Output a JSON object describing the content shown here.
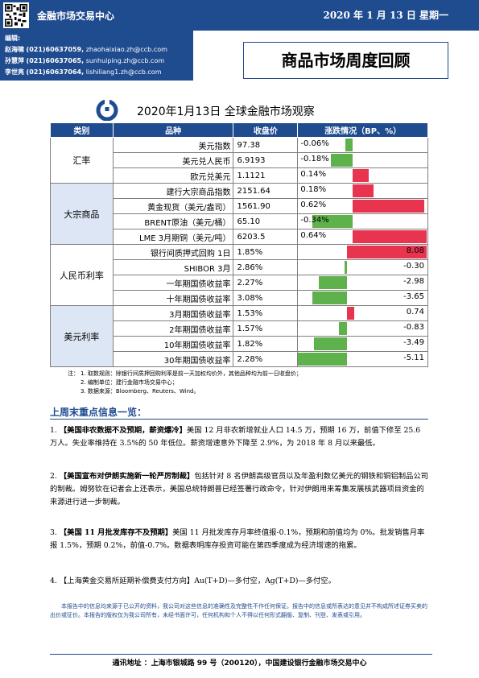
{
  "header": {
    "dept": "金融市场交易中心",
    "date": "2020 年 1 月 13 日  星期一",
    "editors_label": "编辑:",
    "editors": [
      {
        "name": "赵海啸",
        "phone": "(021)60637059,",
        "email": "zhaohaixiao.zh@ccb.com"
      },
      {
        "name": "孙慧萍",
        "phone": "(021)60637065,",
        "email": "sunhuiping.zh@ccb.com"
      },
      {
        "name": "李世亮",
        "phone": "(021)60637064,",
        "email": "lishiliang1.zh@ccb.com"
      }
    ],
    "report_title": "商品市场周度回顾"
  },
  "headline": "2020年1月13日  全球金融市场观察",
  "table": {
    "headers": [
      "类别",
      "品种",
      "收盘价",
      "涨跌情况（BP、%）"
    ],
    "accent_pos": "#e8344f",
    "accent_neg": "#5fb24b",
    "groups": [
      {
        "category": "汇率",
        "shade": false,
        "scale": "pct",
        "rows": [
          {
            "name": "美元指数",
            "close": "97.38",
            "change": "-0.06%",
            "value": -0.06
          },
          {
            "name": "美元兑人民币",
            "close": "6.9193",
            "change": "-0.18%",
            "value": -0.18
          },
          {
            "name": "欧元兑美元",
            "close": "1.1121",
            "change": "0.14%",
            "value": 0.14
          }
        ]
      },
      {
        "category": "大宗商品",
        "shade": true,
        "scale": "pct",
        "rows": [
          {
            "name": "建行大宗商品指数",
            "close": "2151.64",
            "change": "0.18%",
            "value": 0.18
          },
          {
            "name": "黄金现货（美元/盎司）",
            "close": "1561.90",
            "change": "0.62%",
            "value": 0.62
          },
          {
            "name": "BRENT原油（美元/桶）",
            "close": "65.10",
            "change": "-0.34%",
            "value": -0.34
          },
          {
            "name": "LME 3月期铜（美元/吨）",
            "close": "6203.5",
            "change": "0.64%",
            "value": 0.64
          }
        ]
      },
      {
        "category": "人民币利率",
        "shade": false,
        "scale": "bp",
        "rows": [
          {
            "name": "银行间质押式回购 1日",
            "close": "1.85%",
            "change": "8.08",
            "value": 8.08
          },
          {
            "name": "SHIBOR 3月",
            "close": "2.86%",
            "change": "-0.30",
            "value": -0.3
          },
          {
            "name": "一年期国债收益率",
            "close": "2.27%",
            "change": "-2.98",
            "value": -2.98
          },
          {
            "name": "十年期国债收益率",
            "close": "3.08%",
            "change": "-3.65",
            "value": -3.65
          }
        ]
      },
      {
        "category": "美元利率",
        "shade": true,
        "scale": "bp",
        "rows": [
          {
            "name": "3月期国债收益率",
            "close": "1.53%",
            "change": "0.74",
            "value": 0.74
          },
          {
            "name": "2年期国债收益率",
            "close": "1.57%",
            "change": "-0.83",
            "value": -0.83
          },
          {
            "name": "10年期国债收益率",
            "close": "1.82%",
            "change": "-3.49",
            "value": -3.49
          },
          {
            "name": "30年期国债收益率",
            "close": "2.28%",
            "change": "-5.11",
            "value": -5.11
          }
        ]
      }
    ]
  },
  "notes": {
    "label": "注：",
    "items": [
      "1. 取数规则：除银行间质押回购利率是前一天加权均价外，其他品种均为前一日收盘价；",
      "2. 编制单位：建行金融市场交易中心；",
      "3. 数据来源：Bloomberg、Reuters、Wind。"
    ]
  },
  "section_title": "上周末重点信息一览：",
  "news": [
    {
      "num": "1.",
      "title": "【美国非农数据不及预期，薪资爆冷】",
      "body": "美国 12 月非农新增就业人口 14.5 万，预期 16 万，前值下修至 25.6 万人。失业率维持在 3.5%的 50 年低位。薪资增速意外下降至 2.9%，为 2018 年 8 月以来最低。"
    },
    {
      "num": "2.",
      "title": "【美国宣布对伊朗实施新一轮严厉制裁】",
      "body": "包括针对 8 名伊朗高级官员以及年盈利数亿美元的钢铁和铜铝制品公司的制裁。姆努钦在记者会上还表示，美国总统特朗普已经签署行政命令，针对伊朗用来筹集发展核武器项目资金的来源进行进一步制裁。"
    },
    {
      "num": "3.",
      "title": "【美国 11 月批发库存不及预期】",
      "body": "美国 11 月批发库存月率终值报-0.1%，预期和前值均为 0%。批发销售月率报 1.5%，预期 0.2%，前值-0.7%。数据表明库存投资可能在第四季度成为经济增速的拖累。"
    },
    {
      "num": "4.",
      "title": "【上海黄金交易所延期补偿费支付方向】",
      "body": "Au(T+D)—多付空，Ag(T+D)—多付空。"
    }
  ],
  "disclaimer": "本报告中的信息均来源于已公开的资料，我公司对这些信息的准确性及完整性不作任何保证。报告中的信息或所表达的意见并不构成所述证券买卖的出价或征价。本报告的版权仅为我公司所有，未经书面许可，任何机构和个人不得以任何形式翻版、复制、刊登、发表或引用。",
  "footer": "通讯地址 ：上海市银城路 99 号（200120），中国建设银行金融市场交易中心"
}
